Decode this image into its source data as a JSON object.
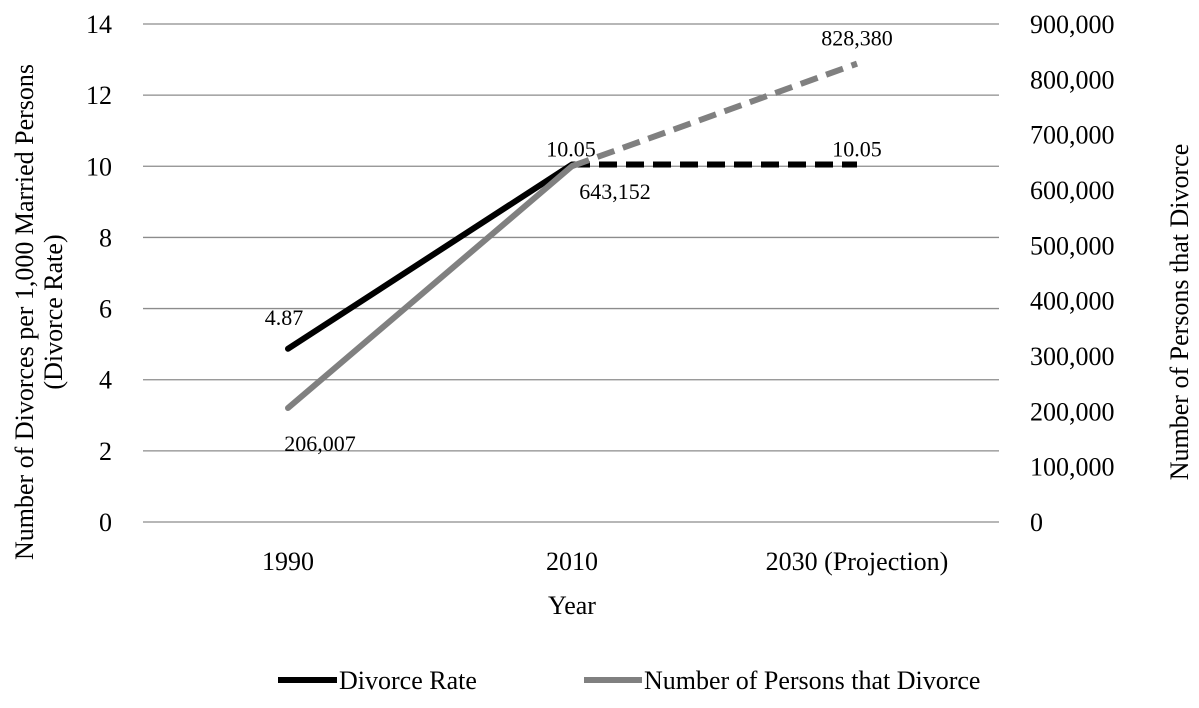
{
  "chart_data": {
    "type": "line",
    "categories": [
      "1990",
      "2010",
      "2030 (Projection)"
    ],
    "xlabel": "Year",
    "ylabel_left": [
      "Number of Divorces per 1,000 Married Persons",
      "(Divorce Rate)"
    ],
    "ylabel_right": "Number of Persons that Divorce",
    "ylim_left": [
      0,
      14
    ],
    "yticks_left": [
      "0",
      "2",
      "4",
      "6",
      "8",
      "10",
      "12",
      "14"
    ],
    "ylim_right": [
      0,
      900000
    ],
    "yticks_right": [
      "0",
      "100,000",
      "200,000",
      "300,000",
      "400,000",
      "500,000",
      "600,000",
      "700,000",
      "800,000",
      "900,000"
    ],
    "grid": true,
    "legend_position": "bottom",
    "series": [
      {
        "name": "Divorce Rate",
        "axis": "left",
        "color": "#000000",
        "values": [
          4.87,
          10.05,
          10.05
        ],
        "labels": [
          "4.87",
          "10.05",
          "10.05"
        ],
        "projected_from_index": 1
      },
      {
        "name": "Number of Persons that Divorce",
        "axis": "right",
        "color": "#808080",
        "values": [
          206007,
          643152,
          828380
        ],
        "labels": [
          "206,007",
          "643,152",
          "828,380"
        ],
        "projected_from_index": 1
      }
    ]
  }
}
